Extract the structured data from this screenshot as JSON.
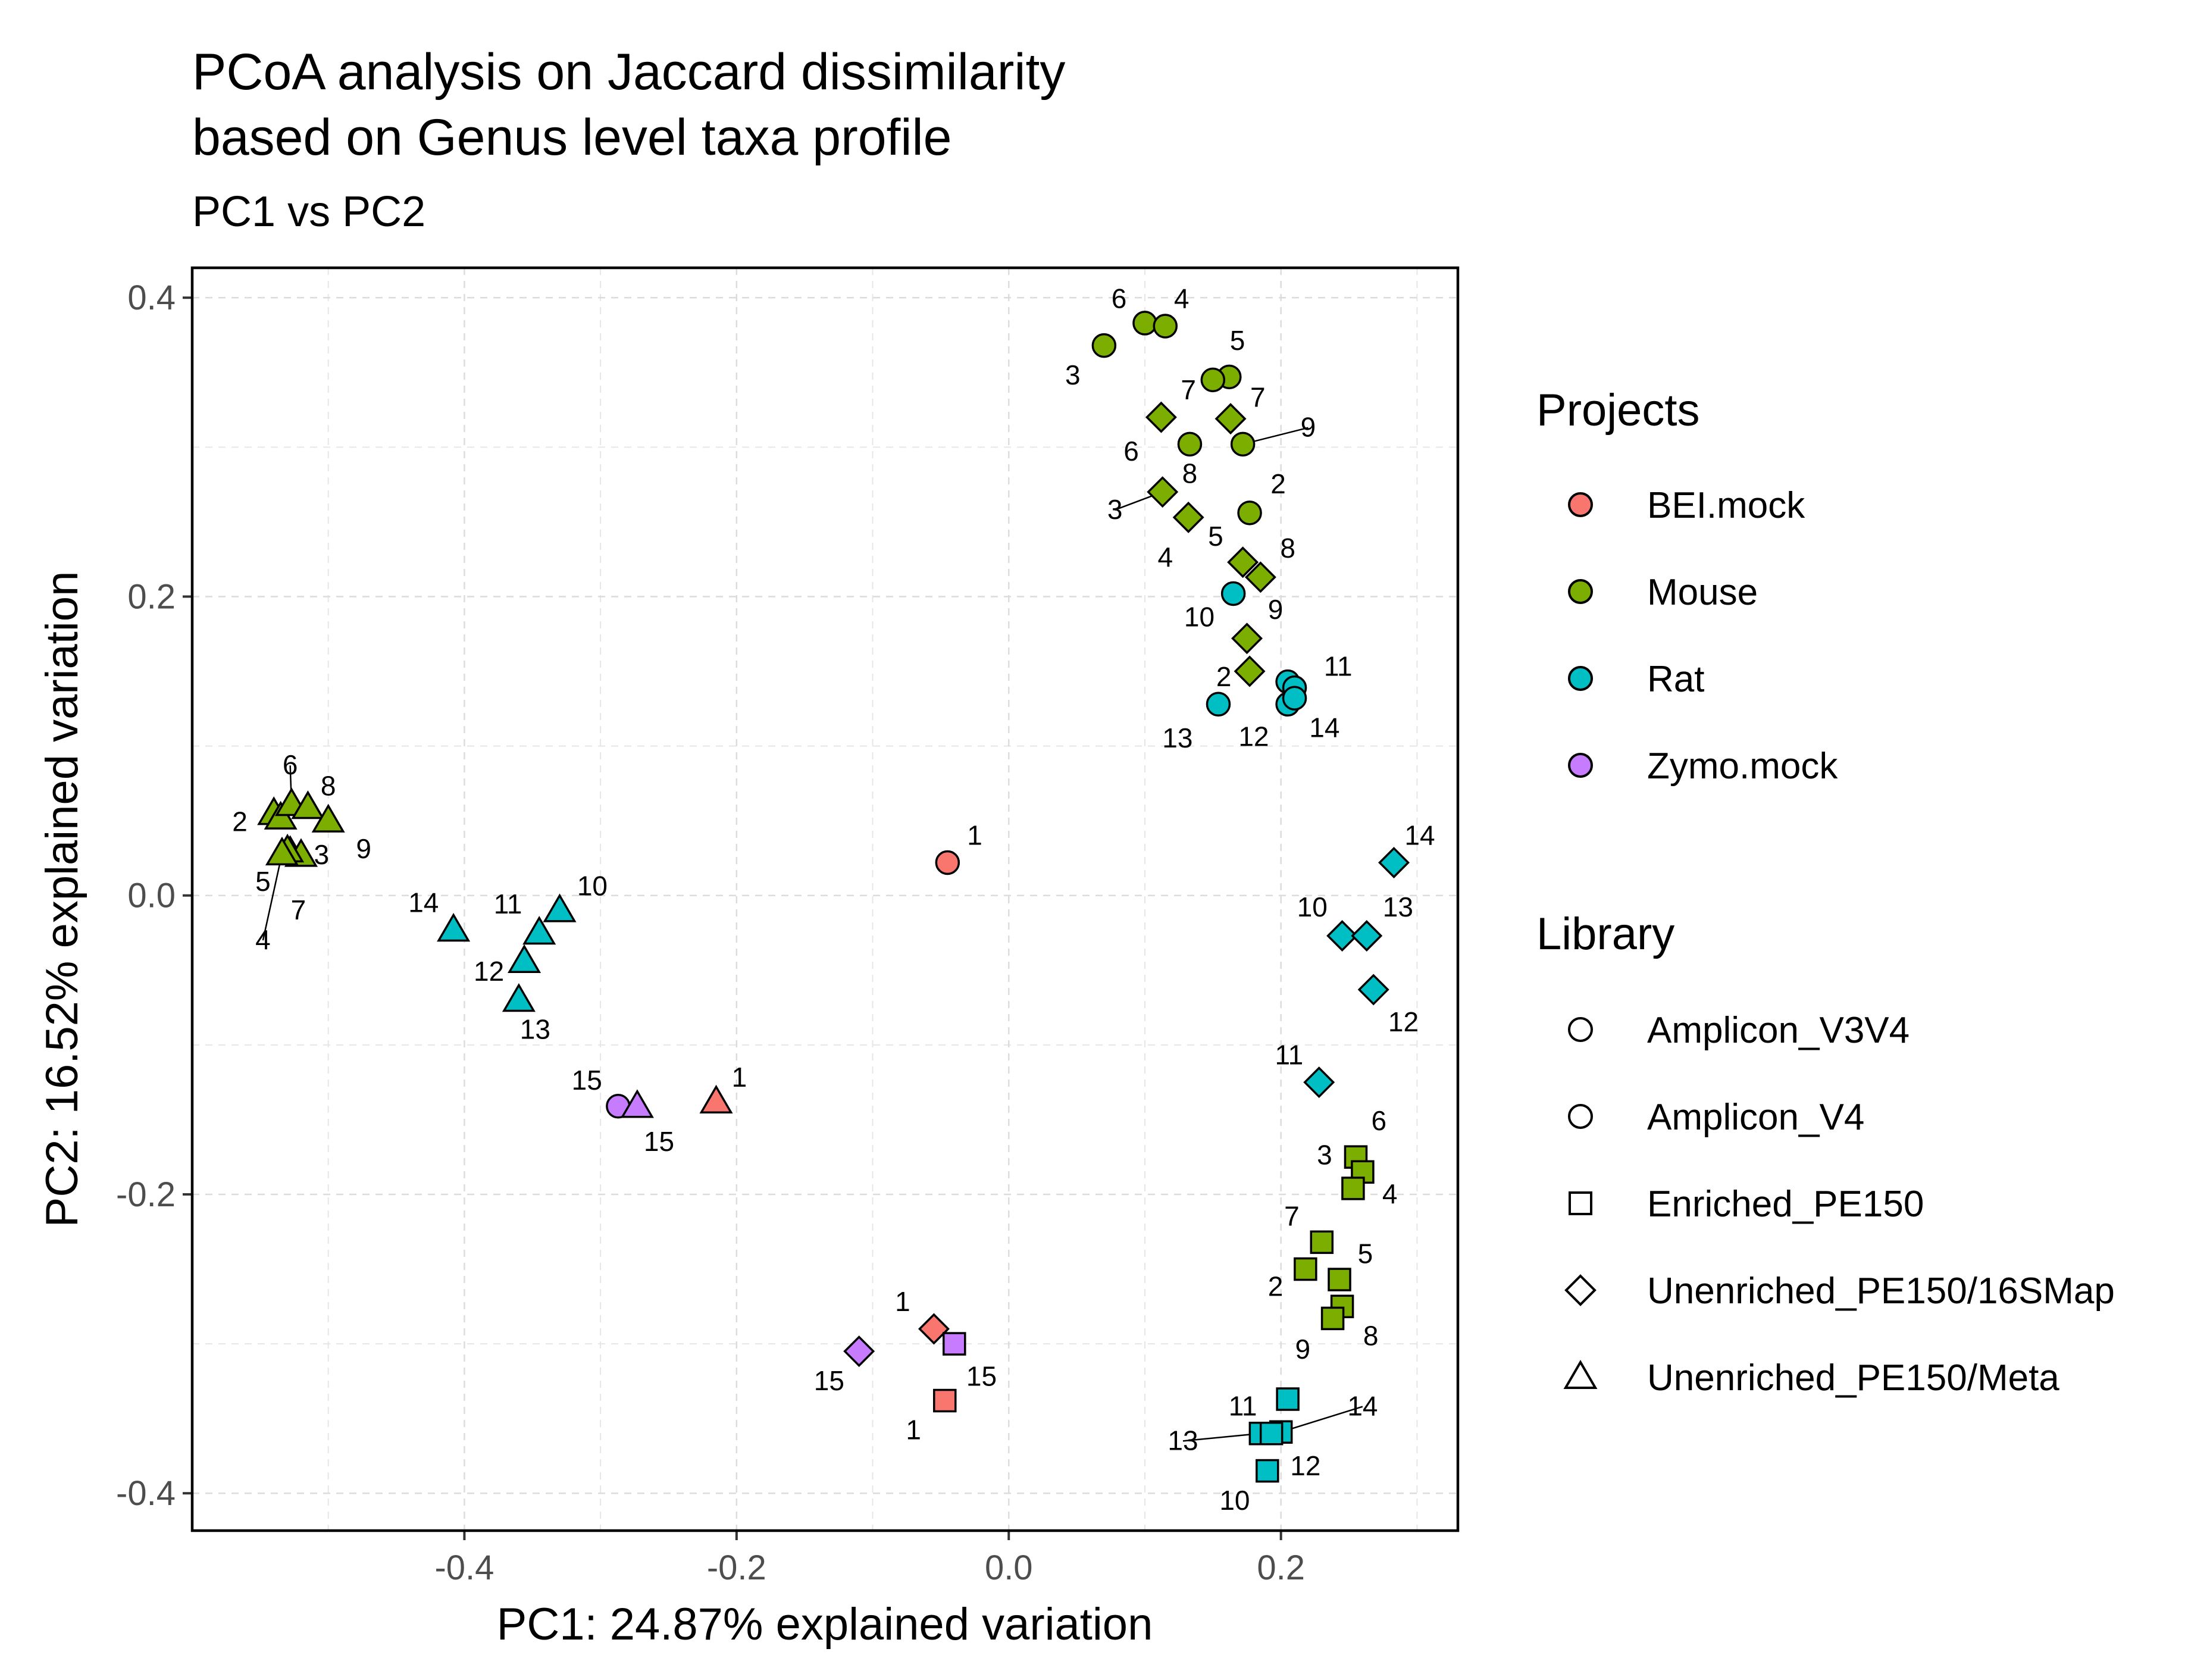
{
  "chart_data": {
    "type": "scatter",
    "title_line1": "PCoA analysis on Jaccard dissimilarity",
    "title_line2": "based on Genus level taxa profile",
    "subtitle": "PC1 vs PC2",
    "xlabel": "PC1: 24.87% explained variation",
    "ylabel": "PC2: 16.52% explained variation",
    "xlim": [
      -0.6,
      0.33
    ],
    "ylim": [
      -0.425,
      0.42
    ],
    "x_ticks": [
      {
        "value": -0.4,
        "label": "-0.4"
      },
      {
        "value": -0.2,
        "label": "-0.2"
      },
      {
        "value": 0.0,
        "label": "0.0"
      },
      {
        "value": 0.2,
        "label": "0.2"
      }
    ],
    "y_ticks": [
      {
        "value": -0.4,
        "label": "-0.4"
      },
      {
        "value": -0.2,
        "label": "-0.2"
      },
      {
        "value": 0.0,
        "label": "0.0"
      },
      {
        "value": 0.2,
        "label": "0.2"
      },
      {
        "value": 0.4,
        "label": "0.4"
      }
    ],
    "grid": true,
    "colors": {
      "BEI.mock": "#F8766D",
      "Mouse": "#7CAE00",
      "Rat": "#00BFC4",
      "Zymo.mock": "#C77CFF"
    },
    "legend_projects": {
      "title": "Projects",
      "placement": "right",
      "items": [
        {
          "label": "BEI.mock",
          "color": "#F8766D"
        },
        {
          "label": "Mouse",
          "color": "#7CAE00"
        },
        {
          "label": "Rat",
          "color": "#00BFC4"
        },
        {
          "label": "Zymo.mock",
          "color": "#C77CFF"
        }
      ]
    },
    "legend_library": {
      "title": "Library",
      "placement": "right",
      "items": [
        {
          "label": "Amplicon_V3V4",
          "shape": "circle"
        },
        {
          "label": "Amplicon_V4",
          "shape": "circle"
        },
        {
          "label": "Enriched_PE150",
          "shape": "square"
        },
        {
          "label": "Unenriched_PE150/16SMap",
          "shape": "diamond"
        },
        {
          "label": "Unenriched_PE150/Meta",
          "shape": "triangle"
        }
      ]
    },
    "points": [
      {
        "x": 0.07,
        "y": 0.368,
        "project": "Mouse",
        "shape": "circle",
        "label": "3",
        "lx": 0.047,
        "ly": 0.348
      },
      {
        "x": 0.1,
        "y": 0.383,
        "project": "Mouse",
        "shape": "circle",
        "label": "6",
        "lx": 0.081,
        "ly": 0.399
      },
      {
        "x": 0.115,
        "y": 0.381,
        "project": "Mouse",
        "shape": "circle",
        "label": "4",
        "lx": 0.127,
        "ly": 0.399
      },
      {
        "x": 0.162,
        "y": 0.347,
        "project": "Mouse",
        "shape": "circle",
        "label": "5",
        "lx": 0.168,
        "ly": 0.371
      },
      {
        "x": 0.15,
        "y": 0.345,
        "project": "Mouse",
        "shape": "circle",
        "label": "7",
        "lx": 0.183,
        "ly": 0.333
      },
      {
        "x": 0.133,
        "y": 0.302,
        "project": "Mouse",
        "shape": "circle",
        "label": "6",
        "lx": 0.09,
        "ly": 0.297
      },
      {
        "x": 0.172,
        "y": 0.302,
        "project": "Mouse",
        "shape": "circle",
        "label": "9",
        "lx": 0.22,
        "ly": 0.313,
        "line": true
      },
      {
        "x": 0.177,
        "y": 0.256,
        "project": "Mouse",
        "shape": "circle",
        "label": "2",
        "lx": 0.198,
        "ly": 0.275
      },
      {
        "x": 0.112,
        "y": 0.32,
        "project": "Mouse",
        "shape": "diamond",
        "label": "7",
        "lx": 0.132,
        "ly": 0.338
      },
      {
        "x": 0.163,
        "y": 0.319,
        "project": "Mouse",
        "shape": "diamond"
      },
      {
        "x": 0.113,
        "y": 0.27,
        "project": "Mouse",
        "shape": "diamond",
        "label": "3",
        "lx": 0.078,
        "ly": 0.258,
        "line": true
      },
      {
        "x": 0.132,
        "y": 0.253,
        "project": "Mouse",
        "shape": "diamond",
        "label": "8",
        "lx": 0.133,
        "ly": 0.282
      },
      {
        "x": 0.172,
        "y": 0.223,
        "project": "Mouse",
        "shape": "diamond",
        "label": "5",
        "lx": 0.152,
        "ly": 0.24
      },
      {
        "x": 0.185,
        "y": 0.213,
        "project": "Mouse",
        "shape": "diamond",
        "label": "8",
        "lx": 0.205,
        "ly": 0.232
      },
      {
        "x": 0.175,
        "y": 0.172,
        "project": "Mouse",
        "shape": "diamond",
        "label": "4",
        "lx": 0.115,
        "ly": 0.226
      },
      {
        "x": 0.177,
        "y": 0.15,
        "project": "Mouse",
        "shape": "diamond",
        "label": "9",
        "lx": 0.196,
        "ly": 0.191
      },
      {
        "x": 0.165,
        "y": 0.202,
        "project": "Rat",
        "shape": "circle",
        "label": "10",
        "lx": 0.14,
        "ly": 0.186
      },
      {
        "x": 0.154,
        "y": 0.128,
        "project": "Rat",
        "shape": "circle",
        "label": "2",
        "lx": 0.158,
        "ly": 0.146
      },
      {
        "x": 0.205,
        "y": 0.143,
        "project": "Rat",
        "shape": "circle",
        "label": "11",
        "lx": 0.242,
        "ly": 0.153
      },
      {
        "x": 0.21,
        "y": 0.139,
        "project": "Rat",
        "shape": "circle",
        "label": "13",
        "lx": 0.124,
        "ly": 0.105
      },
      {
        "x": 0.205,
        "y": 0.128,
        "project": "Rat",
        "shape": "circle",
        "label": "12",
        "lx": 0.18,
        "ly": 0.106
      },
      {
        "x": 0.21,
        "y": 0.132,
        "project": "Rat",
        "shape": "circle",
        "label": "14",
        "lx": 0.232,
        "ly": 0.112
      },
      {
        "x": 0.283,
        "y": 0.022,
        "project": "Rat",
        "shape": "diamond",
        "label": "14",
        "lx": 0.302,
        "ly": 0.04
      },
      {
        "x": 0.245,
        "y": -0.027,
        "project": "Rat",
        "shape": "diamond",
        "label": "10",
        "lx": 0.223,
        "ly": -0.008
      },
      {
        "x": 0.263,
        "y": -0.027,
        "project": "Rat",
        "shape": "diamond",
        "label": "13",
        "lx": 0.286,
        "ly": -0.008
      },
      {
        "x": 0.268,
        "y": -0.063,
        "project": "Rat",
        "shape": "diamond",
        "label": "12",
        "lx": 0.29,
        "ly": -0.085
      },
      {
        "x": 0.228,
        "y": -0.125,
        "project": "Rat",
        "shape": "diamond",
        "label": "11",
        "lx": 0.206,
        "ly": -0.107
      },
      {
        "x": -0.54,
        "y": 0.055,
        "project": "Mouse",
        "shape": "triangle",
        "label": "2",
        "lx": -0.565,
        "ly": 0.049
      },
      {
        "x": -0.535,
        "y": 0.052,
        "project": "Mouse",
        "shape": "triangle"
      },
      {
        "x": -0.527,
        "y": 0.061,
        "project": "Mouse",
        "shape": "triangle",
        "label": "6",
        "lx": -0.528,
        "ly": 0.087,
        "line": true
      },
      {
        "x": -0.515,
        "y": 0.059,
        "project": "Mouse",
        "shape": "triangle",
        "label": "8",
        "lx": -0.5,
        "ly": 0.073
      },
      {
        "x": -0.5,
        "y": 0.05,
        "project": "Mouse",
        "shape": "triangle",
        "label": "9",
        "lx": -0.474,
        "ly": 0.031
      },
      {
        "x": -0.528,
        "y": 0.029,
        "project": "Mouse",
        "shape": "triangle",
        "label": "3",
        "lx": -0.505,
        "ly": 0.027
      },
      {
        "x": -0.52,
        "y": 0.027,
        "project": "Mouse",
        "shape": "triangle",
        "label": "5",
        "lx": -0.548,
        "ly": 0.009
      },
      {
        "x": -0.53,
        "y": 0.03,
        "project": "Mouse",
        "shape": "triangle",
        "label": "7",
        "lx": -0.522,
        "ly": -0.01
      },
      {
        "x": -0.534,
        "y": 0.028,
        "project": "Mouse",
        "shape": "triangle",
        "label": "4",
        "lx": -0.548,
        "ly": -0.03,
        "line": true
      },
      {
        "x": -0.408,
        "y": -0.023,
        "project": "Rat",
        "shape": "triangle",
        "label": "14",
        "lx": -0.43,
        "ly": -0.005
      },
      {
        "x": -0.33,
        "y": -0.01,
        "project": "Rat",
        "shape": "triangle",
        "label": "10",
        "lx": -0.306,
        "ly": 0.006
      },
      {
        "x": -0.345,
        "y": -0.025,
        "project": "Rat",
        "shape": "triangle",
        "label": "11",
        "lx": -0.368,
        "ly": -0.006
      },
      {
        "x": -0.356,
        "y": -0.044,
        "project": "Rat",
        "shape": "triangle",
        "label": "12",
        "lx": -0.382,
        "ly": -0.051
      },
      {
        "x": -0.36,
        "y": -0.07,
        "project": "Rat",
        "shape": "triangle",
        "label": "13",
        "lx": -0.348,
        "ly": -0.09
      },
      {
        "x": -0.287,
        "y": -0.141,
        "project": "Zymo.mock",
        "shape": "circle",
        "label": "15",
        "lx": -0.31,
        "ly": -0.124
      },
      {
        "x": -0.273,
        "y": -0.141,
        "project": "Zymo.mock",
        "shape": "triangle",
        "label": "15",
        "lx": -0.257,
        "ly": -0.165
      },
      {
        "x": -0.215,
        "y": -0.138,
        "project": "BEI.mock",
        "shape": "triangle",
        "label": "1",
        "lx": -0.198,
        "ly": -0.122
      },
      {
        "x": -0.045,
        "y": 0.022,
        "project": "BEI.mock",
        "shape": "circle",
        "label": "1",
        "lx": -0.025,
        "ly": 0.04
      },
      {
        "x": -0.055,
        "y": -0.29,
        "project": "BEI.mock",
        "shape": "diamond",
        "label": "1",
        "lx": -0.078,
        "ly": -0.272
      },
      {
        "x": -0.047,
        "y": -0.338,
        "project": "BEI.mock",
        "shape": "square",
        "label": "1",
        "lx": -0.07,
        "ly": -0.358
      },
      {
        "x": -0.11,
        "y": -0.305,
        "project": "Zymo.mock",
        "shape": "diamond",
        "label": "15",
        "lx": -0.132,
        "ly": -0.325
      },
      {
        "x": -0.04,
        "y": -0.3,
        "project": "Zymo.mock",
        "shape": "square",
        "label": "15",
        "lx": -0.02,
        "ly": -0.322
      },
      {
        "x": 0.255,
        "y": -0.175,
        "project": "Mouse",
        "shape": "square",
        "label": "6",
        "lx": 0.272,
        "ly": -0.151
      },
      {
        "x": 0.26,
        "y": -0.185,
        "project": "Mouse",
        "shape": "square",
        "label": "3",
        "lx": 0.232,
        "ly": -0.174
      },
      {
        "x": 0.253,
        "y": -0.196,
        "project": "Mouse",
        "shape": "square",
        "label": "4",
        "lx": 0.28,
        "ly": -0.2
      },
      {
        "x": 0.23,
        "y": -0.232,
        "project": "Mouse",
        "shape": "square",
        "label": "7",
        "lx": 0.208,
        "ly": -0.215
      },
      {
        "x": 0.243,
        "y": -0.257,
        "project": "Mouse",
        "shape": "square",
        "label": "5",
        "lx": 0.262,
        "ly": -0.24
      },
      {
        "x": 0.218,
        "y": -0.25,
        "project": "Mouse",
        "shape": "square",
        "label": "2",
        "lx": 0.196,
        "ly": -0.262
      },
      {
        "x": 0.245,
        "y": -0.275,
        "project": "Mouse",
        "shape": "square",
        "label": "8",
        "lx": 0.266,
        "ly": -0.295
      },
      {
        "x": 0.238,
        "y": -0.283,
        "project": "Mouse",
        "shape": "square",
        "label": "9",
        "lx": 0.216,
        "ly": -0.304
      },
      {
        "x": 0.205,
        "y": -0.337,
        "project": "Rat",
        "shape": "square",
        "label": "11",
        "lx": 0.172,
        "ly": -0.342
      },
      {
        "x": 0.185,
        "y": -0.36,
        "project": "Rat",
        "shape": "square",
        "label": "13",
        "lx": 0.128,
        "ly": -0.365,
        "line": true
      },
      {
        "x": 0.2,
        "y": -0.359,
        "project": "Rat",
        "shape": "square",
        "label": "14",
        "lx": 0.26,
        "ly": -0.342,
        "line": true
      },
      {
        "x": 0.193,
        "y": -0.36,
        "project": "Rat",
        "shape": "square",
        "label": "12",
        "lx": 0.218,
        "ly": -0.382
      },
      {
        "x": 0.19,
        "y": -0.385,
        "project": "Rat",
        "shape": "square",
        "label": "10",
        "lx": 0.166,
        "ly": -0.405
      }
    ]
  }
}
